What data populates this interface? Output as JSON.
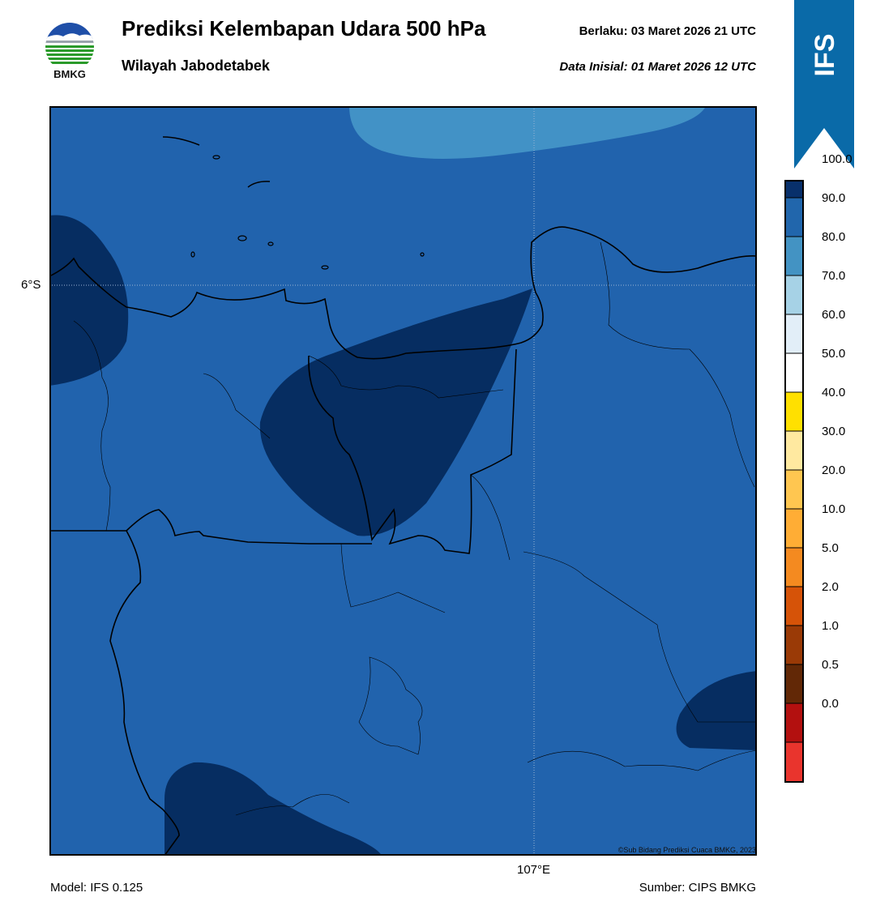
{
  "header": {
    "title": "Prediksi Kelembapan Udara 500 hPa",
    "subtitle": "Wilayah Jabodetabek",
    "valid": "Berlaku:  03 Maret 2026 21 UTC",
    "initial": "Data Inisial:  01 Maret 2026 12 UTC"
  },
  "logo": {
    "text": "BMKG",
    "icon": "bmkg-logo-icon"
  },
  "badge": {
    "text": "IFS",
    "color": "#0a6aa8"
  },
  "map": {
    "lat_label": "6°S",
    "lon_label": "107°E",
    "copyright": "©Sub Bidang Prediksi Cuaca BMKG, 2023",
    "colors": {
      "band_80_90": "#2163ad",
      "band_90_100": "#062d61",
      "band_70_80": "#4292c6"
    }
  },
  "colorbar": {
    "labels": [
      "100.0",
      "90.0",
      "80.0",
      "70.0",
      "60.0",
      "50.0",
      "40.0",
      "30.0",
      "20.0",
      "10.0",
      "5.0",
      "2.0",
      "1.0",
      "0.5",
      "0.0"
    ],
    "colors": [
      "#3b0b4f",
      "#08306b",
      "#2166ac",
      "#4393c3",
      "#a6d2e6",
      "#e2eef8",
      "#ffffff",
      "#ffe000",
      "#ffe9a0",
      "#ffc650",
      "#ffad35",
      "#f48a20",
      "#d65308",
      "#9a3a06",
      "#622806",
      "#b3100f",
      "#e9342d"
    ]
  },
  "footer": {
    "model": "Model: IFS 0.125",
    "source": "Sumber: CIPS BMKG"
  }
}
